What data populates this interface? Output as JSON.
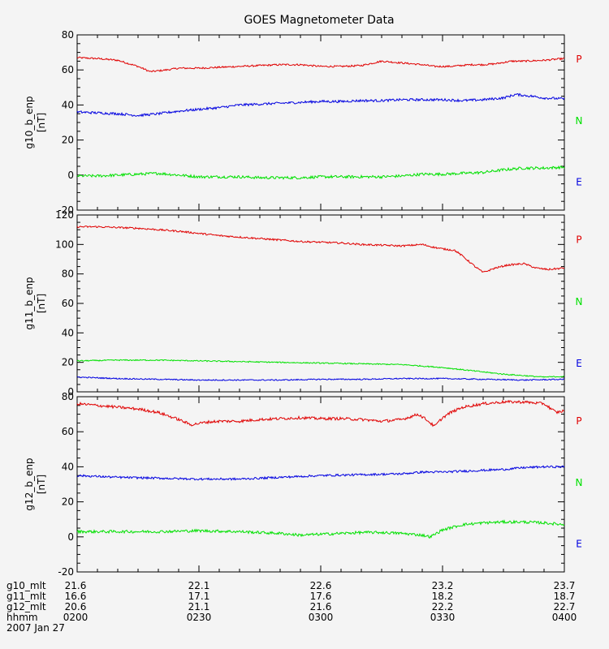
{
  "chart_data": {
    "type": "line",
    "title": "GOES Magnetometer Data",
    "x_tick_labels": {
      "g10_mlt": [
        "21.6",
        "22.1",
        "22.6",
        "23.2",
        "23.7"
      ],
      "g11_mlt": [
        "16.6",
        "17.1",
        "17.6",
        "18.2",
        "18.7"
      ],
      "g12_mlt": [
        "20.6",
        "21.1",
        "21.6",
        "22.2",
        "22.7"
      ],
      "hhmm": [
        "0200",
        "0230",
        "0300",
        "0330",
        "0400"
      ]
    },
    "footer_row_labels": [
      "g10_mlt",
      "g11_mlt",
      "g12_mlt",
      "hhmm"
    ],
    "date_label": "2007 Jan 27",
    "x_range_minutes": [
      0,
      120
    ],
    "panels": [
      {
        "ylabel": "g10_b_enp",
        "yunit": "[nT]",
        "ylim": [
          -20,
          80
        ],
        "yticks": [
          -20,
          0,
          20,
          40,
          60,
          80
        ],
        "legend": [
          {
            "label": "P",
            "color": "#e00000"
          },
          {
            "label": "N",
            "color": "#00e000"
          },
          {
            "label": "E",
            "color": "#0000e0"
          }
        ],
        "series": [
          {
            "name": "P",
            "color": "#e00000",
            "x": [
              0,
              5,
              10,
              15,
              18,
              22,
              25,
              30,
              35,
              40,
              45,
              50,
              55,
              60,
              65,
              70,
              75,
              80,
              85,
              88,
              92,
              97,
              100,
              103,
              107,
              110,
              115,
              120
            ],
            "values": [
              67,
              66.5,
              65.5,
              62,
              59,
              60,
              61,
              61,
              61.5,
              62,
              62.5,
              63,
              63,
              62,
              62,
              62.5,
              65,
              64,
              63,
              62,
              62,
              63,
              63,
              63.5,
              65,
              65,
              65.5,
              66.5
            ],
            "noise": 0.5
          },
          {
            "name": "N",
            "color": "#00e000",
            "x": [
              0,
              5,
              10,
              15,
              20,
              25,
              30,
              35,
              40,
              45,
              50,
              55,
              60,
              65,
              70,
              75,
              80,
              85,
              90,
              95,
              100,
              105,
              110,
              115,
              120
            ],
            "values": [
              -0.5,
              -0.5,
              0,
              0.5,
              1,
              0,
              -1,
              -1,
              -1,
              -1.5,
              -1.5,
              -1.5,
              -1,
              -1,
              -1,
              -1,
              -0.5,
              0.5,
              0.5,
              1,
              1.5,
              3,
              4,
              4,
              4.5
            ],
            "noise": 0.8
          },
          {
            "name": "E",
            "color": "#0000e0",
            "x": [
              0,
              5,
              10,
              15,
              20,
              25,
              30,
              35,
              40,
              45,
              50,
              55,
              60,
              65,
              70,
              75,
              80,
              85,
              90,
              95,
              100,
              105,
              108,
              112,
              115,
              120
            ],
            "values": [
              36,
              35.5,
              35,
              34,
              35,
              36.5,
              37.5,
              38.5,
              40,
              40.5,
              41,
              41.5,
              42,
              42,
              42.5,
              42.5,
              43,
              43,
              43,
              42.5,
              43,
              44,
              46,
              45,
              44,
              43.5
            ],
            "noise": 0.7
          }
        ]
      },
      {
        "ylabel": "g11_b_enp",
        "yunit": "[nT]",
        "ylim": [
          0,
          120
        ],
        "yticks": [
          0,
          20,
          40,
          60,
          80,
          100,
          120
        ],
        "legend": [
          {
            "label": "P",
            "color": "#e00000"
          },
          {
            "label": "N",
            "color": "#00e000"
          },
          {
            "label": "E",
            "color": "#0000e0"
          }
        ],
        "series": [
          {
            "name": "P",
            "color": "#e00000",
            "x": [
              0,
              5,
              10,
              15,
              20,
              25,
              30,
              35,
              40,
              45,
              50,
              55,
              60,
              65,
              70,
              75,
              80,
              85,
              88,
              90,
              93,
              95,
              98,
              100,
              103,
              106,
              110,
              113,
              116,
              120
            ],
            "values": [
              112,
              112,
              111.5,
              111,
              110,
              109,
              107.5,
              106,
              105,
              104,
              103,
              102,
              101.5,
              101,
              100,
              99.5,
              99,
              100,
              98,
              97,
              96,
              92,
              85,
              81,
              84,
              86,
              87,
              84,
              83,
              84
            ],
            "noise": 0.6
          },
          {
            "name": "N",
            "color": "#00e000",
            "x": [
              0,
              10,
              20,
              30,
              40,
              50,
              60,
              70,
              80,
              85,
              90,
              95,
              100,
              105,
              110,
              115,
              120
            ],
            "values": [
              21,
              21.5,
              21.5,
              21,
              20.5,
              20,
              19.5,
              19,
              18.5,
              17.5,
              16.5,
              15,
              13.5,
              12,
              11,
              10,
              10.5
            ],
            "noise": 0.4
          },
          {
            "name": "E",
            "color": "#0000e0",
            "x": [
              0,
              10,
              20,
              30,
              40,
              50,
              60,
              70,
              80,
              90,
              100,
              110,
              120
            ],
            "values": [
              10,
              9,
              8.5,
              8,
              8,
              8,
              8.5,
              8.5,
              9,
              9,
              8.5,
              8,
              8.5
            ],
            "noise": 0.4
          }
        ]
      },
      {
        "ylabel": "g12_b_enp",
        "yunit": "[nT]",
        "ylim": [
          -20,
          80
        ],
        "yticks": [
          -20,
          0,
          20,
          40,
          60,
          80
        ],
        "legend": [
          {
            "label": "P",
            "color": "#e00000"
          },
          {
            "label": "N",
            "color": "#00e000"
          },
          {
            "label": "E",
            "color": "#0000e0"
          }
        ],
        "series": [
          {
            "name": "P",
            "color": "#e00000",
            "x": [
              0,
              5,
              10,
              15,
              20,
              25,
              28,
              32,
              35,
              40,
              45,
              50,
              55,
              60,
              65,
              70,
              75,
              80,
              84,
              86,
              88,
              90,
              92,
              95,
              100,
              105,
              110,
              115,
              118,
              120
            ],
            "values": [
              76,
              75,
              74,
              73,
              71,
              67,
              64,
              65.5,
              66,
              66,
              67,
              67.5,
              68,
              67.5,
              67.5,
              67,
              66,
              67,
              70,
              67,
              63,
              68,
              71,
              74,
              76,
              77,
              77,
              76,
              71,
              72
            ],
            "noise": 0.8
          },
          {
            "name": "N",
            "color": "#00e000",
            "x": [
              0,
              10,
              20,
              30,
              40,
              50,
              55,
              60,
              65,
              70,
              75,
              80,
              85,
              87,
              90,
              95,
              100,
              105,
              110,
              115,
              120
            ],
            "values": [
              3,
              3,
              3,
              3.5,
              3,
              2,
              1,
              1.5,
              2,
              2.5,
              2.5,
              2,
              1,
              0,
              4,
              7,
              8,
              8.5,
              8.5,
              8,
              7
            ],
            "noise": 0.8
          },
          {
            "name": "E",
            "color": "#0000e0",
            "x": [
              0,
              10,
              20,
              30,
              40,
              50,
              60,
              70,
              80,
              85,
              90,
              95,
              100,
              105,
              110,
              115,
              120
            ],
            "values": [
              35,
              34,
              33.5,
              33,
              33,
              34,
              35,
              35.5,
              36,
              37,
              37,
              37.5,
              38,
              38.5,
              39.5,
              40,
              40
            ],
            "noise": 0.6
          }
        ]
      }
    ]
  }
}
